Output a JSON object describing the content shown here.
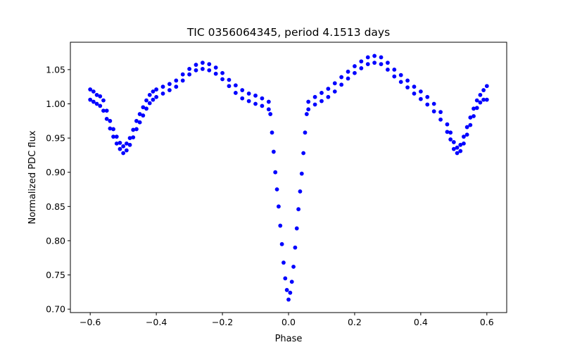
{
  "chart_data": {
    "type": "scatter",
    "title": "TIC 0356064345, period 4.1513 days",
    "xlabel": "Phase",
    "ylabel": "Normalized PDC flux",
    "xlim": [
      -0.66,
      0.66
    ],
    "ylim": [
      0.695,
      1.09
    ],
    "xticks": [
      -0.6,
      -0.4,
      -0.2,
      0.0,
      0.2,
      0.4,
      0.6
    ],
    "xtick_labels": [
      "−0.6",
      "−0.4",
      "−0.2",
      "0.0",
      "0.2",
      "0.4",
      "0.6"
    ],
    "yticks": [
      0.7,
      0.75,
      0.8,
      0.85,
      0.9,
      0.95,
      1.0,
      1.05
    ],
    "ytick_labels": [
      "0.70",
      "0.75",
      "0.80",
      "0.85",
      "0.90",
      "0.95",
      "1.00",
      "1.05"
    ],
    "grid": false,
    "marker_color": "#0000ff",
    "series": [
      {
        "name": "PDC flux",
        "points": [
          [
            -0.6,
            1.021
          ],
          [
            -0.6,
            1.006
          ],
          [
            -0.59,
            1.018
          ],
          [
            -0.59,
            1.003
          ],
          [
            -0.58,
            1.013
          ],
          [
            -0.58,
            1.0
          ],
          [
            -0.57,
            1.011
          ],
          [
            -0.57,
            0.997
          ],
          [
            -0.56,
            1.005
          ],
          [
            -0.56,
            0.99
          ],
          [
            -0.55,
            0.99
          ],
          [
            -0.55,
            0.978
          ],
          [
            -0.54,
            0.975
          ],
          [
            -0.54,
            0.964
          ],
          [
            -0.53,
            0.963
          ],
          [
            -0.53,
            0.952
          ],
          [
            -0.52,
            0.952
          ],
          [
            -0.52,
            0.942
          ],
          [
            -0.51,
            0.943
          ],
          [
            -0.51,
            0.934
          ],
          [
            -0.5,
            0.938
          ],
          [
            -0.5,
            0.928
          ],
          [
            -0.49,
            0.942
          ],
          [
            -0.49,
            0.932
          ],
          [
            -0.48,
            0.95
          ],
          [
            -0.48,
            0.94
          ],
          [
            -0.47,
            0.962
          ],
          [
            -0.47,
            0.951
          ],
          [
            -0.46,
            0.975
          ],
          [
            -0.46,
            0.963
          ],
          [
            -0.45,
            0.985
          ],
          [
            -0.45,
            0.973
          ],
          [
            -0.44,
            0.995
          ],
          [
            -0.44,
            0.983
          ],
          [
            -0.43,
            1.005
          ],
          [
            -0.43,
            0.993
          ],
          [
            -0.42,
            1.013
          ],
          [
            -0.42,
            1.001
          ],
          [
            -0.41,
            1.018
          ],
          [
            -0.41,
            1.006
          ],
          [
            -0.4,
            1.021
          ],
          [
            -0.4,
            1.01
          ],
          [
            -0.38,
            1.025
          ],
          [
            -0.38,
            1.015
          ],
          [
            -0.36,
            1.029
          ],
          [
            -0.36,
            1.02
          ],
          [
            -0.34,
            1.034
          ],
          [
            -0.34,
            1.025
          ],
          [
            -0.32,
            1.043
          ],
          [
            -0.32,
            1.034
          ],
          [
            -0.3,
            1.051
          ],
          [
            -0.3,
            1.043
          ],
          [
            -0.28,
            1.057
          ],
          [
            -0.28,
            1.049
          ],
          [
            -0.26,
            1.06
          ],
          [
            -0.26,
            1.051
          ],
          [
            -0.24,
            1.058
          ],
          [
            -0.24,
            1.049
          ],
          [
            -0.22,
            1.053
          ],
          [
            -0.22,
            1.044
          ],
          [
            -0.2,
            1.045
          ],
          [
            -0.2,
            1.036
          ],
          [
            -0.18,
            1.035
          ],
          [
            -0.18,
            1.026
          ],
          [
            -0.16,
            1.027
          ],
          [
            -0.16,
            1.016
          ],
          [
            -0.14,
            1.02
          ],
          [
            -0.14,
            1.008
          ],
          [
            -0.12,
            1.015
          ],
          [
            -0.12,
            1.004
          ],
          [
            -0.1,
            1.012
          ],
          [
            -0.1,
            1.0
          ],
          [
            -0.08,
            1.008
          ],
          [
            -0.08,
            0.997
          ],
          [
            -0.06,
            1.003
          ],
          [
            -0.06,
            0.992
          ],
          [
            -0.055,
            0.985
          ],
          [
            -0.05,
            0.958
          ],
          [
            -0.045,
            0.93
          ],
          [
            -0.04,
            0.9
          ],
          [
            -0.035,
            0.875
          ],
          [
            -0.03,
            0.85
          ],
          [
            -0.025,
            0.822
          ],
          [
            -0.02,
            0.795
          ],
          [
            -0.015,
            0.768
          ],
          [
            -0.01,
            0.745
          ],
          [
            -0.005,
            0.728
          ],
          [
            0.0,
            0.714
          ],
          [
            0.005,
            0.724
          ],
          [
            0.01,
            0.74
          ],
          [
            0.015,
            0.762
          ],
          [
            0.02,
            0.79
          ],
          [
            0.025,
            0.818
          ],
          [
            0.03,
            0.846
          ],
          [
            0.035,
            0.872
          ],
          [
            0.04,
            0.898
          ],
          [
            0.045,
            0.928
          ],
          [
            0.05,
            0.958
          ],
          [
            0.055,
            0.985
          ],
          [
            0.06,
            1.003
          ],
          [
            0.06,
            0.992
          ],
          [
            0.08,
            1.01
          ],
          [
            0.08,
            0.999
          ],
          [
            0.1,
            1.016
          ],
          [
            0.1,
            1.004
          ],
          [
            0.12,
            1.022
          ],
          [
            0.12,
            1.01
          ],
          [
            0.14,
            1.03
          ],
          [
            0.14,
            1.018
          ],
          [
            0.16,
            1.039
          ],
          [
            0.16,
            1.028
          ],
          [
            0.18,
            1.047
          ],
          [
            0.18,
            1.037
          ],
          [
            0.2,
            1.055
          ],
          [
            0.2,
            1.045
          ],
          [
            0.22,
            1.062
          ],
          [
            0.22,
            1.052
          ],
          [
            0.24,
            1.068
          ],
          [
            0.24,
            1.058
          ],
          [
            0.26,
            1.07
          ],
          [
            0.26,
            1.06
          ],
          [
            0.28,
            1.068
          ],
          [
            0.28,
            1.058
          ],
          [
            0.3,
            1.06
          ],
          [
            0.3,
            1.05
          ],
          [
            0.32,
            1.05
          ],
          [
            0.32,
            1.04
          ],
          [
            0.34,
            1.042
          ],
          [
            0.34,
            1.032
          ],
          [
            0.36,
            1.034
          ],
          [
            0.36,
            1.024
          ],
          [
            0.38,
            1.025
          ],
          [
            0.38,
            1.015
          ],
          [
            0.4,
            1.018
          ],
          [
            0.4,
            1.007
          ],
          [
            0.42,
            1.01
          ],
          [
            0.42,
            0.999
          ],
          [
            0.44,
            1.0
          ],
          [
            0.44,
            0.989
          ],
          [
            0.46,
            0.988
          ],
          [
            0.46,
            0.977
          ],
          [
            0.48,
            0.97
          ],
          [
            0.48,
            0.959
          ],
          [
            0.49,
            0.958
          ],
          [
            0.49,
            0.948
          ],
          [
            0.5,
            0.944
          ],
          [
            0.5,
            0.934
          ],
          [
            0.51,
            0.936
          ],
          [
            0.51,
            0.928
          ],
          [
            0.52,
            0.94
          ],
          [
            0.52,
            0.931
          ],
          [
            0.53,
            0.952
          ],
          [
            0.53,
            0.942
          ],
          [
            0.54,
            0.966
          ],
          [
            0.54,
            0.955
          ],
          [
            0.55,
            0.98
          ],
          [
            0.55,
            0.969
          ],
          [
            0.56,
            0.993
          ],
          [
            0.56,
            0.982
          ],
          [
            0.57,
            1.005
          ],
          [
            0.57,
            0.994
          ],
          [
            0.58,
            1.013
          ],
          [
            0.58,
            1.002
          ],
          [
            0.59,
            1.02
          ],
          [
            0.59,
            1.006
          ],
          [
            0.6,
            1.026
          ],
          [
            0.6,
            1.006
          ]
        ]
      }
    ]
  }
}
